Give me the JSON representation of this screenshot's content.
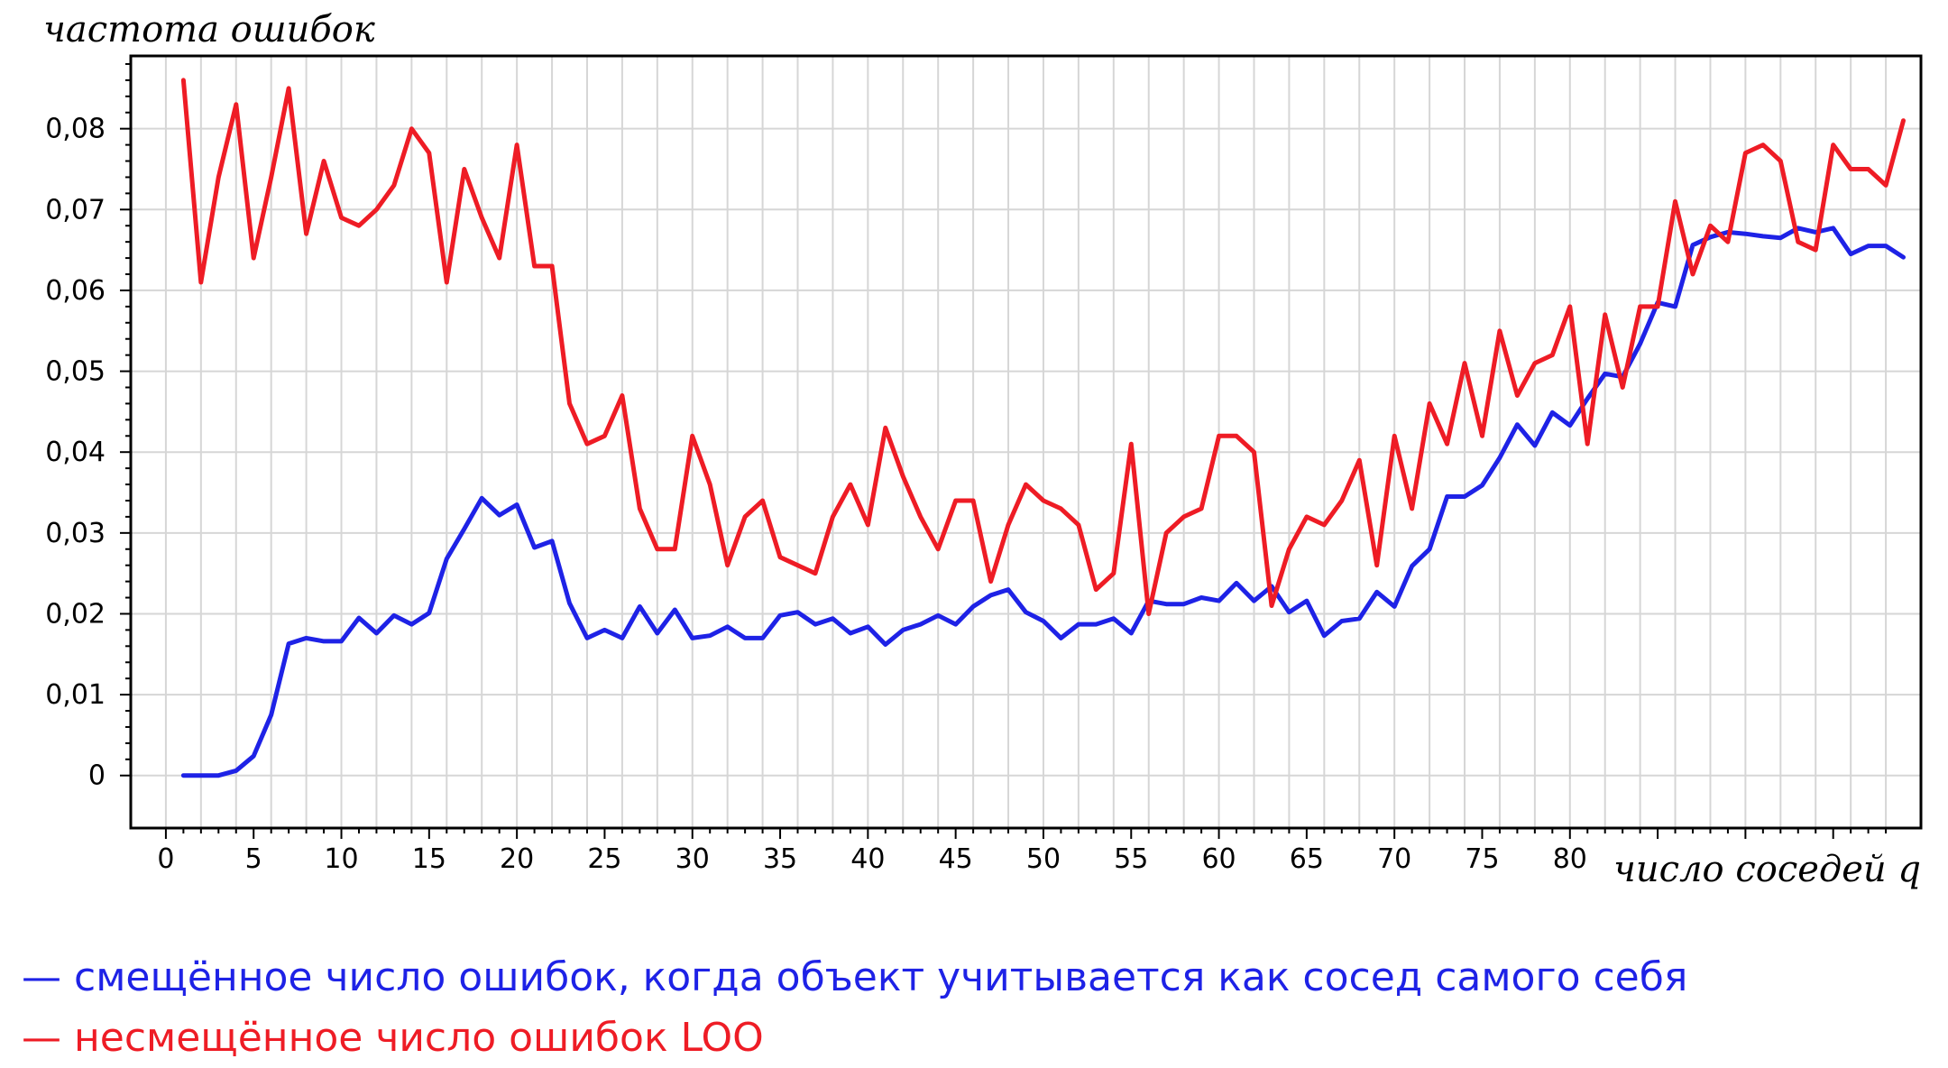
{
  "chart_data": {
    "type": "line",
    "ylabel": "частота ошибок",
    "xlabel": "число соседей q",
    "xlim": [
      -2,
      100
    ],
    "ylim": [
      -0.0065,
      0.089
    ],
    "x_ticks": [
      0,
      5,
      10,
      15,
      20,
      25,
      30,
      35,
      40,
      45,
      50,
      55,
      60,
      65,
      70,
      75,
      80
    ],
    "y_ticks": [
      {
        "value": 0,
        "label": "0"
      },
      {
        "value": 0.01,
        "label": "0,01"
      },
      {
        "value": 0.02,
        "label": "0,02"
      },
      {
        "value": 0.03,
        "label": "0,03"
      },
      {
        "value": 0.04,
        "label": "0,04"
      },
      {
        "value": 0.05,
        "label": "0,05"
      },
      {
        "value": 0.06,
        "label": "0,06"
      },
      {
        "value": 0.07,
        "label": "0,07"
      },
      {
        "value": 0.08,
        "label": "0,08"
      }
    ],
    "grid": true,
    "legend_position": "bottom",
    "series": [
      {
        "name": "смещённое число ошибок, когда объект учитывается как сосед самого себя",
        "color": "#1e22e6",
        "x": [
          1,
          2,
          3,
          4,
          5,
          6,
          7,
          8,
          9,
          10,
          11,
          12,
          13,
          14,
          15,
          16,
          17,
          18,
          19,
          20,
          21,
          22,
          23,
          24,
          25,
          26,
          27,
          28,
          29,
          30,
          31,
          32,
          33,
          34,
          35,
          36,
          37,
          38,
          39,
          40,
          41,
          42,
          43,
          44,
          45,
          46,
          47,
          48,
          49,
          50,
          51,
          52,
          53,
          54,
          55,
          56,
          57,
          58,
          59,
          60,
          61,
          62,
          63,
          64,
          65,
          66,
          67,
          68,
          69,
          70,
          71,
          72,
          73,
          74,
          75,
          76,
          77,
          78,
          79,
          80,
          81,
          82,
          83,
          84,
          85,
          86,
          87,
          88,
          89,
          90,
          91,
          92,
          93,
          94,
          95,
          96,
          97,
          98,
          99
        ],
        "values": [
          0,
          0,
          0,
          0.0006,
          0.0024,
          0.0075,
          0.0163,
          0.017,
          0.0166,
          0.0166,
          0.0195,
          0.0176,
          0.0198,
          0.0187,
          0.0201,
          0.0268,
          0.0305,
          0.0343,
          0.0322,
          0.0335,
          0.0282,
          0.029,
          0.0213,
          0.017,
          0.018,
          0.017,
          0.0209,
          0.0176,
          0.0205,
          0.017,
          0.0173,
          0.0184,
          0.017,
          0.017,
          0.0198,
          0.0202,
          0.0187,
          0.0194,
          0.0176,
          0.0184,
          0.0162,
          0.018,
          0.0187,
          0.0198,
          0.0187,
          0.0209,
          0.0223,
          0.023,
          0.0202,
          0.0191,
          0.017,
          0.0187,
          0.0187,
          0.0194,
          0.0176,
          0.0216,
          0.0212,
          0.0212,
          0.022,
          0.0216,
          0.0238,
          0.0216,
          0.0234,
          0.0202,
          0.0216,
          0.0173,
          0.0191,
          0.0194,
          0.0227,
          0.0209,
          0.0259,
          0.028,
          0.0345,
          0.0345,
          0.0359,
          0.0393,
          0.0434,
          0.0408,
          0.0449,
          0.0433,
          0.0466,
          0.0497,
          0.0493,
          0.0534,
          0.0585,
          0.058,
          0.0656,
          0.0666,
          0.0672,
          0.067,
          0.0667,
          0.0665,
          0.0677,
          0.0672,
          0.0677,
          0.0645,
          0.0655,
          0.0655,
          0.0641
        ]
      },
      {
        "name": "несмещённое число ошибок LOO",
        "color": "#ee1c25",
        "x": [
          1,
          2,
          3,
          4,
          5,
          6,
          7,
          8,
          9,
          10,
          11,
          12,
          13,
          14,
          15,
          16,
          17,
          18,
          19,
          20,
          21,
          22,
          23,
          24,
          25,
          26,
          27,
          28,
          29,
          30,
          31,
          32,
          33,
          34,
          35,
          36,
          37,
          38,
          39,
          40,
          41,
          42,
          43,
          44,
          45,
          46,
          47,
          48,
          49,
          50,
          51,
          52,
          53,
          54,
          55,
          56,
          57,
          58,
          59,
          60,
          61,
          62,
          63,
          64,
          65,
          66,
          67,
          68,
          69,
          70,
          71,
          72,
          73,
          74,
          75,
          76,
          77,
          78,
          79,
          80,
          81,
          82,
          83,
          84,
          85,
          86,
          87,
          88,
          89,
          90,
          91,
          92,
          93,
          94,
          95,
          96,
          97,
          98,
          99
        ],
        "values": [
          0.086,
          0.061,
          0.074,
          0.083,
          0.064,
          0.074,
          0.085,
          0.067,
          0.076,
          0.069,
          0.068,
          0.07,
          0.073,
          0.08,
          0.077,
          0.061,
          0.075,
          0.069,
          0.064,
          0.078,
          0.063,
          0.063,
          0.046,
          0.041,
          0.042,
          0.047,
          0.033,
          0.028,
          0.028,
          0.042,
          0.036,
          0.026,
          0.032,
          0.034,
          0.027,
          0.026,
          0.025,
          0.032,
          0.036,
          0.031,
          0.043,
          0.037,
          0.032,
          0.028,
          0.034,
          0.034,
          0.024,
          0.031,
          0.036,
          0.034,
          0.033,
          0.031,
          0.023,
          0.025,
          0.041,
          0.02,
          0.03,
          0.032,
          0.033,
          0.042,
          0.042,
          0.04,
          0.021,
          0.028,
          0.032,
          0.031,
          0.034,
          0.039,
          0.026,
          0.042,
          0.033,
          0.046,
          0.041,
          0.051,
          0.042,
          0.055,
          0.047,
          0.051,
          0.052,
          0.058,
          0.041,
          0.057,
          0.048,
          0.058,
          0.058,
          0.071,
          0.062,
          0.068,
          0.066,
          0.077,
          0.078,
          0.076,
          0.066,
          0.065,
          0.078,
          0.075,
          0.075,
          0.073,
          0.081
        ]
      }
    ]
  },
  "legend": [
    {
      "marker": "—",
      "label": "смещённое число ошибок, когда объект учитывается как сосед самого себя"
    },
    {
      "marker": "—",
      "label": "несмещённое число ошибок LOO"
    }
  ]
}
